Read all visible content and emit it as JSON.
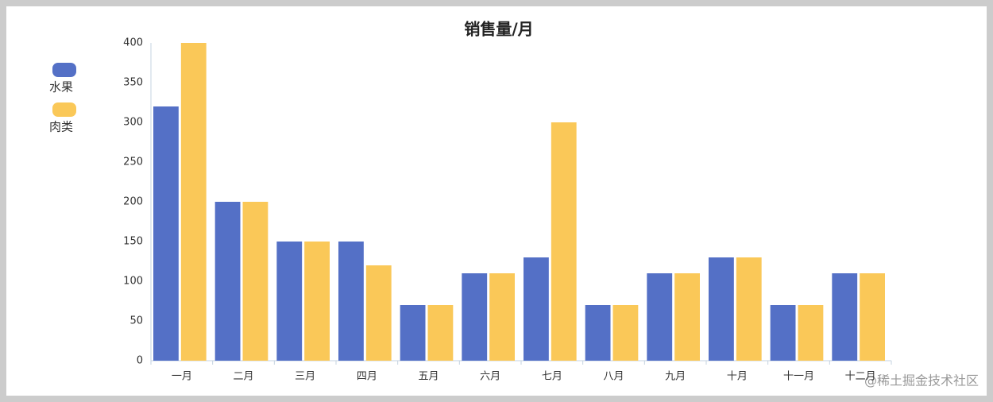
{
  "chart_data": {
    "type": "bar",
    "title": "销售量/月",
    "categories": [
      "一月",
      "二月",
      "三月",
      "四月",
      "五月",
      "六月",
      "七月",
      "八月",
      "九月",
      "十月",
      "十一月",
      "十二月"
    ],
    "series": [
      {
        "name": "水果",
        "color": "#5470c6",
        "values": [
          320,
          200,
          150,
          150,
          70,
          110,
          130,
          70,
          110,
          130,
          70,
          110
        ]
      },
      {
        "name": "肉类",
        "color": "#fac858",
        "values": [
          400,
          200,
          150,
          120,
          70,
          110,
          300,
          70,
          110,
          130,
          70,
          110
        ]
      }
    ],
    "ylim": [
      0,
      400
    ],
    "yticks": [
      0,
      50,
      100,
      150,
      200,
      250,
      300,
      350,
      400
    ],
    "legend": "left",
    "watermark": "@稀土掘金技术社区"
  }
}
